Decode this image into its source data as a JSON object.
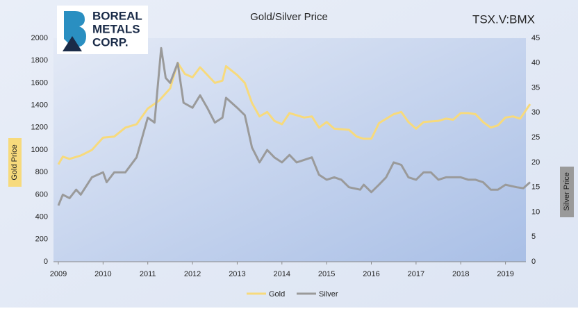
{
  "chart_data": {
    "type": "line",
    "title": "Gold/Silver Price",
    "ticker": "TSX.V:BMX",
    "logo": [
      "BOREAL",
      "METALS",
      "CORP."
    ],
    "y_label": "Gold Price",
    "y2_label": "Silver Price",
    "xlim": [
      2009,
      2019.55
    ],
    "xticks": [
      2009,
      2010,
      2011,
      2012,
      2013,
      2014,
      2015,
      2016,
      2017,
      2018,
      2019
    ],
    "ylim": [
      0,
      2000
    ],
    "yticks": [
      0,
      200,
      400,
      600,
      800,
      1000,
      1200,
      1400,
      1600,
      1800,
      2000
    ],
    "y2lim": [
      0,
      45
    ],
    "y2ticks": [
      0,
      5,
      10,
      15,
      20,
      25,
      30,
      35,
      40,
      45
    ],
    "legend": "bottom",
    "series": [
      {
        "name": "Gold",
        "color": "#f7da7c",
        "x": [
          2009,
          2009.1,
          2009.25,
          2009.5,
          2009.75,
          2010,
          2010.25,
          2010.5,
          2010.75,
          2011,
          2011.25,
          2011.5,
          2011.67,
          2011.83,
          2012,
          2012.17,
          2012.5,
          2012.67,
          2012.75,
          2013,
          2013.17,
          2013.33,
          2013.5,
          2013.67,
          2013.83,
          2014,
          2014.17,
          2014.5,
          2014.67,
          2014.83,
          2015,
          2015.17,
          2015.5,
          2015.67,
          2015.83,
          2016,
          2016.17,
          2016.5,
          2016.67,
          2016.83,
          2017,
          2017.17,
          2017.5,
          2017.67,
          2017.83,
          2018,
          2018.17,
          2018.33,
          2018.5,
          2018.67,
          2018.83,
          2019,
          2019.17,
          2019.33,
          2019.55
        ],
        "values": [
          870,
          940,
          920,
          950,
          1000,
          1110,
          1120,
          1200,
          1230,
          1370,
          1440,
          1550,
          1780,
          1680,
          1650,
          1740,
          1600,
          1620,
          1750,
          1670,
          1600,
          1420,
          1300,
          1340,
          1260,
          1230,
          1330,
          1290,
          1300,
          1200,
          1250,
          1190,
          1180,
          1120,
          1100,
          1100,
          1240,
          1320,
          1340,
          1250,
          1190,
          1250,
          1260,
          1280,
          1270,
          1330,
          1330,
          1320,
          1250,
          1200,
          1220,
          1290,
          1300,
          1280,
          1410
        ]
      },
      {
        "name": "Silver",
        "color": "#9a9a9a",
        "axis": "y2",
        "x": [
          2009,
          2009.1,
          2009.25,
          2009.4,
          2009.5,
          2009.75,
          2010,
          2010.08,
          2010.25,
          2010.5,
          2010.75,
          2011,
          2011.15,
          2011.3,
          2011.4,
          2011.5,
          2011.67,
          2011.8,
          2012,
          2012.17,
          2012.33,
          2012.5,
          2012.67,
          2012.75,
          2013,
          2013.17,
          2013.33,
          2013.5,
          2013.67,
          2013.83,
          2014,
          2014.17,
          2014.33,
          2014.67,
          2014.83,
          2015,
          2015.17,
          2015.33,
          2015.5,
          2015.75,
          2015.83,
          2016,
          2016.17,
          2016.33,
          2016.5,
          2016.67,
          2016.83,
          2017,
          2017.17,
          2017.33,
          2017.5,
          2017.67,
          2017.83,
          2018,
          2018.17,
          2018.33,
          2018.5,
          2018.67,
          2018.83,
          2019,
          2019.25,
          2019.4,
          2019.55
        ],
        "values": [
          11.3,
          13.5,
          12.8,
          14.5,
          13.5,
          17,
          18,
          16,
          18,
          18,
          21,
          29,
          28,
          43,
          37,
          36,
          40,
          32,
          31,
          33.5,
          31,
          28,
          29,
          33,
          31,
          29.5,
          23,
          20,
          22.5,
          21,
          20,
          21.5,
          20,
          21,
          17.5,
          16.5,
          17,
          16.5,
          15,
          14.5,
          15.5,
          14,
          15.5,
          17,
          20,
          19.5,
          17,
          16.5,
          18,
          18,
          16.5,
          17,
          17,
          17,
          16.5,
          16.5,
          16,
          14.5,
          14.5,
          15.5,
          15,
          14.8,
          16
        ]
      }
    ]
  }
}
